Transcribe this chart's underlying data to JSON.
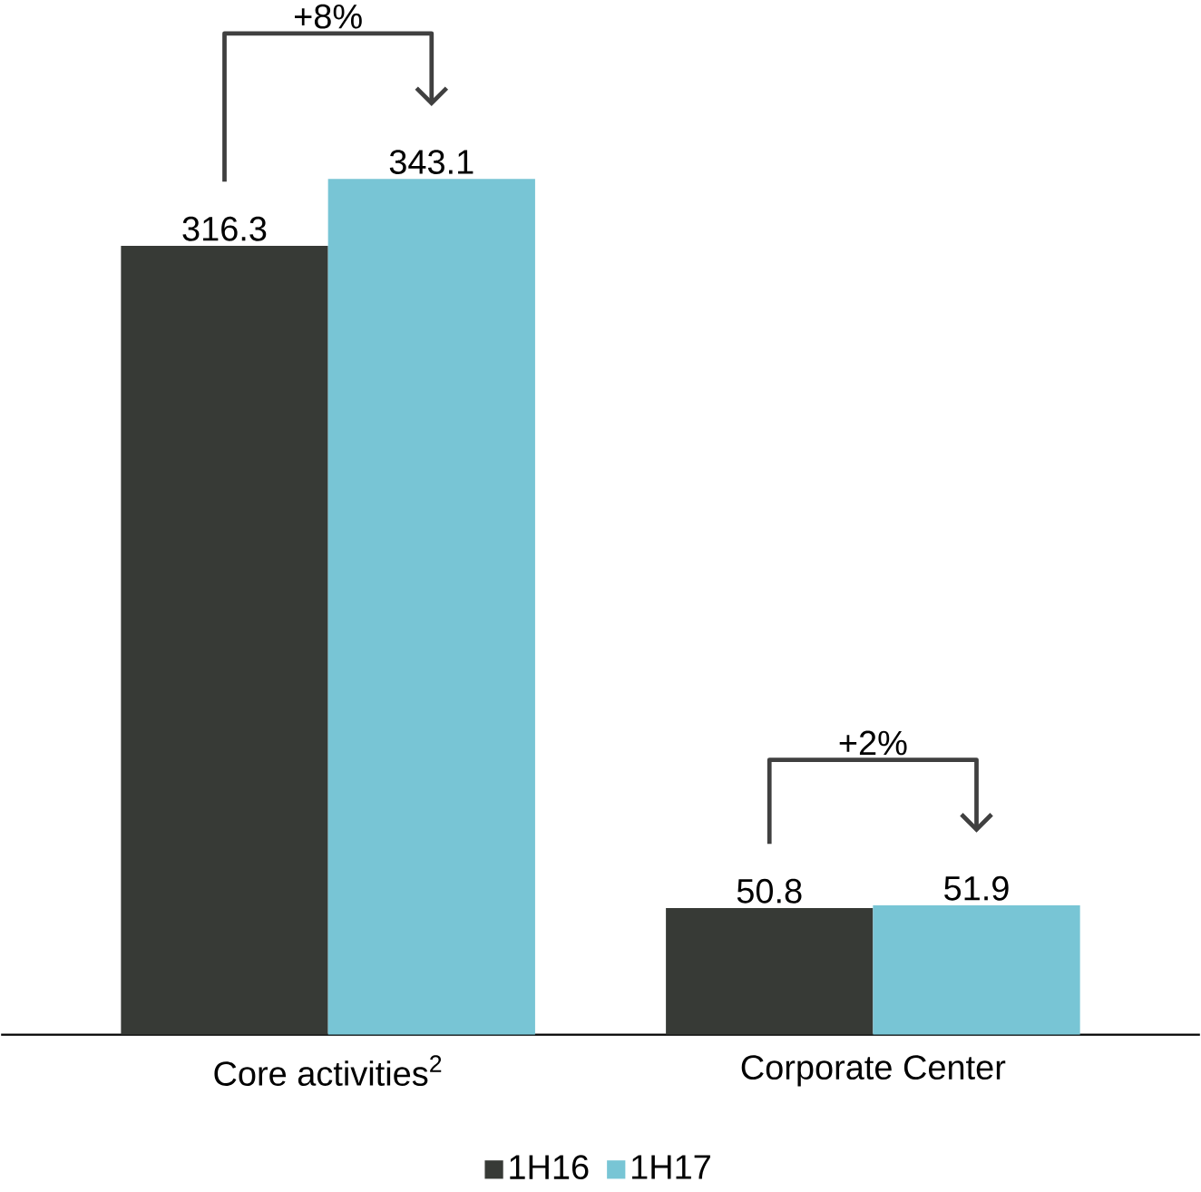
{
  "chart_data": {
    "type": "bar",
    "categories": [
      "Core activities$^{2}$",
      "Corporate Center"
    ],
    "series": [
      {
        "name": "1H16",
        "color": "#373a36",
        "values": [
          316.3,
          50.8
        ]
      },
      {
        "name": "1H17",
        "color": "#78c5d5",
        "values": [
          343.1,
          51.9
        ]
      }
    ],
    "data_labels": true,
    "legend": "bottom",
    "annotations": [
      "+8%",
      "+2%"
    ]
  }
}
